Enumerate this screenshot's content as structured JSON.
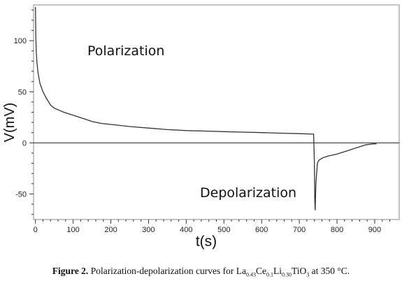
{
  "chart_data": {
    "type": "line",
    "xlabel": "t(s)",
    "ylabel": "V(mV)",
    "xlim": [
      -5,
      965
    ],
    "ylim": [
      -75,
      135
    ],
    "x_ticks": [
      "0",
      "100",
      "200",
      "300",
      "400",
      "500",
      "600",
      "700",
      "800",
      "900"
    ],
    "y_ticks": [
      "100",
      "50",
      "0",
      "-50"
    ],
    "x_tick_values": [
      0,
      100,
      200,
      300,
      400,
      500,
      600,
      700,
      800,
      900
    ],
    "y_tick_values": [
      100,
      50,
      0,
      -50
    ],
    "grid": false,
    "zero_line": true,
    "annotations": [
      "Polarization",
      "Depolarization"
    ],
    "line_color": "#333333",
    "series": [
      {
        "points": [
          [
            0,
            133
          ],
          [
            1,
            105
          ],
          [
            2,
            90
          ],
          [
            4,
            78
          ],
          [
            7,
            68
          ],
          [
            12,
            58
          ],
          [
            20,
            50
          ],
          [
            30,
            43
          ],
          [
            40,
            37
          ],
          [
            50,
            34
          ],
          [
            75,
            30
          ],
          [
            100,
            27
          ],
          [
            125,
            24
          ],
          [
            150,
            21
          ],
          [
            175,
            19
          ],
          [
            200,
            18
          ],
          [
            250,
            16
          ],
          [
            300,
            14.5
          ],
          [
            350,
            13
          ],
          [
            400,
            12
          ],
          [
            450,
            11.5
          ],
          [
            500,
            11
          ],
          [
            550,
            10.5
          ],
          [
            600,
            10
          ],
          [
            650,
            9.5
          ],
          [
            700,
            9
          ],
          [
            738,
            8.5
          ],
          [
            740,
            -20
          ],
          [
            741,
            -55
          ],
          [
            742,
            -66
          ],
          [
            744,
            -40
          ],
          [
            748,
            -20
          ],
          [
            752,
            -17
          ],
          [
            760,
            -15
          ],
          [
            775,
            -13
          ],
          [
            800,
            -11
          ],
          [
            825,
            -8
          ],
          [
            850,
            -5
          ],
          [
            875,
            -2
          ],
          [
            895,
            -1
          ],
          [
            905,
            -1
          ]
        ]
      }
    ]
  },
  "caption": {
    "label": "Figure 2.",
    "text_before": "Polarization-depolarization curves for La",
    "sub1": "0.43",
    "el2": "Ce",
    "sub2": "0.1",
    "el3": "Li",
    "sub3": "0.30",
    "el4": "TiO",
    "sub4": "3",
    "text_after": "at 350 °C."
  }
}
